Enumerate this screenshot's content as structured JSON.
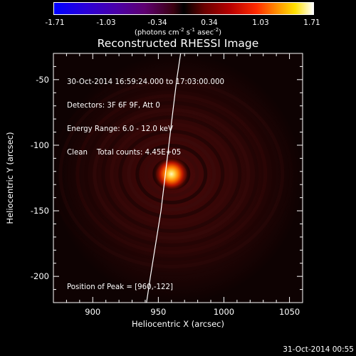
{
  "colorbar": {
    "ticks": [
      "-1.71",
      "-1.03",
      "-0.34",
      "0.34",
      "1.03",
      "1.71"
    ],
    "unit_prefix": "(photons cm",
    "unit_sup1": "-2",
    "unit_mid": " s",
    "unit_sup2": "-1",
    "unit_mid2": " asec",
    "unit_sup3": "-2",
    "unit_suffix": ")"
  },
  "chart_data": {
    "type": "heatmap",
    "title": "Reconstructed RHESSI Image",
    "xlabel": "Heliocentric X (arcsec)",
    "ylabel": "Heliocentric Y (arcsec)",
    "xlim": [
      870,
      1060
    ],
    "ylim": [
      -220,
      -30
    ],
    "xticks": [
      "900",
      "950",
      "1000",
      "1050"
    ],
    "yticks": [
      "-50",
      "-100",
      "-150",
      "-200"
    ],
    "colorbar_range": [
      -1.71,
      1.71
    ],
    "peak": {
      "x": 960,
      "y": -122
    },
    "limb_curve": [
      [
        941,
        -220
      ],
      [
        944,
        -200
      ],
      [
        948,
        -175
      ],
      [
        952,
        -150
      ],
      [
        955,
        -125
      ],
      [
        958,
        -100
      ],
      [
        961,
        -75
      ],
      [
        964,
        -50
      ],
      [
        967,
        -30
      ]
    ],
    "annotations": [
      "30-Oct-2014 16:59:24.000 to 17:03:00.000",
      "Detectors: 3F 6F 9F, Att 0",
      "Energy Range: 6.0 - 12.0 keV",
      "Clean    Total counts: 4.45E+05"
    ],
    "peak_label": "Position of Peak = [960,-122]"
  },
  "footer": "31-Oct-2014 00:55",
  "colors": {
    "background": "#000000",
    "axes": "#ffffff",
    "limb": "#ffffff"
  }
}
